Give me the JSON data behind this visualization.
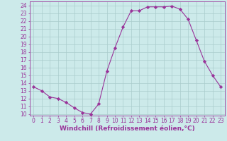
{
  "x": [
    0,
    1,
    2,
    3,
    4,
    5,
    6,
    7,
    8,
    9,
    10,
    11,
    12,
    13,
    14,
    15,
    16,
    17,
    18,
    19,
    20,
    21,
    22,
    23
  ],
  "y": [
    13.5,
    13.0,
    12.2,
    12.0,
    11.5,
    10.8,
    10.2,
    10.0,
    11.3,
    15.5,
    18.5,
    21.2,
    23.3,
    23.3,
    23.8,
    23.8,
    23.8,
    23.9,
    23.5,
    22.2,
    19.5,
    16.8,
    15.0,
    13.5
  ],
  "line_color": "#993399",
  "marker": "D",
  "marker_size": 2.2,
  "bg_color": "#cceaea",
  "grid_color": "#aacccc",
  "xlabel": "Windchill (Refroidissement éolien,°C)",
  "tick_color": "#993399",
  "xlim": [
    -0.5,
    23.5
  ],
  "ylim": [
    9.8,
    24.5
  ],
  "yticks": [
    10,
    11,
    12,
    13,
    14,
    15,
    16,
    17,
    18,
    19,
    20,
    21,
    22,
    23,
    24
  ],
  "xticks": [
    0,
    1,
    2,
    3,
    4,
    5,
    6,
    7,
    8,
    9,
    10,
    11,
    12,
    13,
    14,
    15,
    16,
    17,
    18,
    19,
    20,
    21,
    22,
    23
  ],
  "tick_fontsize": 5.5,
  "xlabel_fontsize": 6.5
}
